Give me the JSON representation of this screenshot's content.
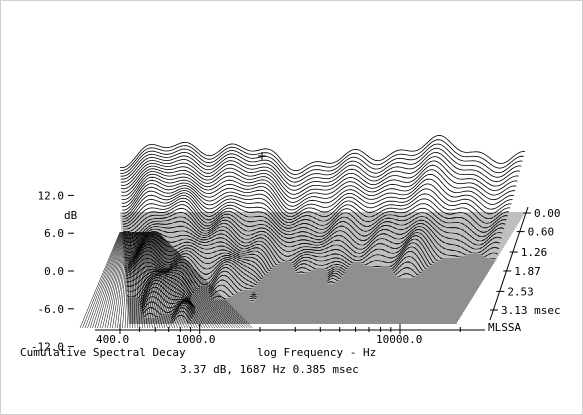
{
  "chart_data": {
    "type": "waterfall",
    "title": "Cumulative Spectral Decay",
    "xlabel": "log Frequency - Hz",
    "ylabel": "dB",
    "x_scale": "log",
    "x_ticks": [
      "400.0",
      "1000.0",
      "10000.0"
    ],
    "x_tick_values": [
      400,
      1000,
      10000
    ],
    "y_ticks": [
      "12.0",
      "6.0",
      "0.0",
      "-6.0",
      "-12.0"
    ],
    "y_tick_values": [
      12,
      6,
      0,
      -6,
      -12
    ],
    "ylim": [
      -15,
      15
    ],
    "time_axis_ticks": [
      "0.00",
      "0.60",
      "1.26",
      "1.87",
      "2.53",
      "3.13 msec"
    ],
    "time_axis_values_msec": [
      0.0,
      0.6,
      1.26,
      1.87,
      2.53,
      3.13
    ],
    "software_label": "MLSSA",
    "cursor_readout": "3.37 dB, 1687 Hz  0.385 msec",
    "cursor": {
      "level_db": 3.37,
      "frequency_hz": 1687,
      "time_msec": 0.385
    }
  }
}
